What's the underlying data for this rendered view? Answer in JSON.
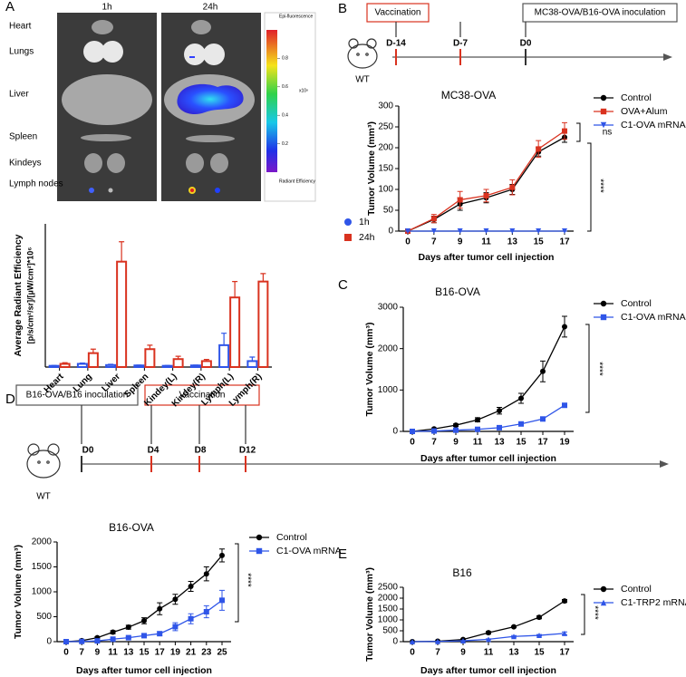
{
  "panel_labels": [
    "A",
    "B",
    "C",
    "D",
    "E"
  ],
  "imaging": {
    "timepoints": [
      "1h",
      "24h"
    ],
    "organs": [
      "Heart",
      "Lungs",
      "Liver",
      "Spleen",
      "Kindeys",
      "Lymph nodes"
    ],
    "colorbar_title": "Epi-fluorescence",
    "colorbar_unit": "x10⁸",
    "colorbar_ticks": [
      0.8,
      0.6,
      0.4,
      0.2
    ],
    "caption": "Radiant Efficiency"
  },
  "timelines": [
    {
      "boxes": [
        "Vaccination",
        "MC38-OVA/B16-OVA inoculation"
      ],
      "days": [
        "D-14",
        "D-7",
        "D0"
      ],
      "mouse": "WT"
    },
    {
      "boxes": [
        "B16-OVA/B16 inoculation",
        "Vaccination"
      ],
      "days": [
        "D0",
        "D4",
        "D8",
        "D12"
      ],
      "mouse": "WT"
    }
  ],
  "chart_data": [
    {
      "type": "bar",
      "y_label": [
        "Average Radiant Efficiency",
        "[p/s/cm²/sr]/[µW/cm²]*10⁶"
      ],
      "categories": [
        "Heart",
        "Lung",
        "Liver",
        "Spleen",
        "Kindey(L)",
        "Kindey(R)",
        "Lymph(L)",
        "Lymph(R)"
      ],
      "ylim": [
        0,
        36
      ],
      "series": [
        {
          "name": "1h",
          "color": "#2f55e8",
          "marker": "circle",
          "values": [
            0.3,
            0.8,
            0.5,
            0.4,
            0.3,
            0.4,
            5.5,
            1.5
          ],
          "errors": [
            0.1,
            0.2,
            0.2,
            0.1,
            0.1,
            0.1,
            3,
            1
          ]
        },
        {
          "name": "24h",
          "color": "#d9321f",
          "marker": "square",
          "values": [
            0.8,
            3.5,
            26.5,
            4.5,
            2,
            1.5,
            17.5,
            21.5
          ],
          "errors": [
            0.3,
            1,
            5,
            1,
            0.7,
            0.4,
            4,
            2
          ]
        }
      ]
    },
    {
      "type": "line",
      "title": "MC38-OVA",
      "y_label": "Tumor Volume (mm³)",
      "x_label": "Days after tumor cell injection",
      "categories": [
        "0",
        "7",
        "9",
        "11",
        "13",
        "15",
        "17"
      ],
      "ylim": [
        0,
        300
      ],
      "yticks": [
        0,
        50,
        100,
        150,
        200,
        250,
        300
      ],
      "series": [
        {
          "name": "Control",
          "color": "#000000",
          "marker": "circle",
          "values": [
            0,
            28,
            65,
            80,
            100,
            190,
            225
          ],
          "errors": [
            0,
            8,
            15,
            12,
            12,
            10,
            12
          ]
        },
        {
          "name": "OVA+Alum",
          "color": "#d9321f",
          "marker": "square",
          "values": [
            0,
            30,
            75,
            85,
            105,
            197,
            240
          ],
          "errors": [
            0,
            10,
            20,
            15,
            18,
            20,
            20
          ]
        },
        {
          "name": "C1-OVA mRNA",
          "color": "#2f55e8",
          "marker": "triangle-down",
          "values": [
            0,
            0,
            0,
            0,
            0,
            0,
            0
          ],
          "errors": [
            0,
            0,
            0,
            0,
            0,
            0,
            0
          ]
        }
      ],
      "annotations": [
        "ns",
        "****"
      ]
    },
    {
      "type": "line",
      "title": "B16-OVA",
      "y_label": "Tumor Volume (mm³)",
      "x_label": "Days after tumor cell injection",
      "categories": [
        "0",
        "7",
        "9",
        "11",
        "13",
        "15",
        "17",
        "19"
      ],
      "ylim": [
        0,
        3000
      ],
      "yticks": [
        0,
        1000,
        2000,
        3000
      ],
      "series": [
        {
          "name": "Control",
          "color": "#000000",
          "marker": "circle",
          "values": [
            0,
            60,
            150,
            280,
            500,
            800,
            1450,
            2530
          ],
          "errors": [
            0,
            20,
            30,
            50,
            80,
            120,
            250,
            250
          ]
        },
        {
          "name": "C1-OVA mRNA",
          "color": "#2f55e8",
          "marker": "square",
          "values": [
            0,
            10,
            30,
            50,
            90,
            180,
            300,
            630
          ],
          "errors": [
            0,
            5,
            10,
            10,
            15,
            20,
            30,
            50
          ]
        }
      ],
      "annotations": [
        "****"
      ]
    },
    {
      "type": "line",
      "title": "B16-OVA",
      "y_label": "Tumor Volume (mm³)",
      "x_label": "Days after tumor cell injection",
      "categories": [
        "0",
        "7",
        "9",
        "11",
        "13",
        "15",
        "17",
        "19",
        "21",
        "23",
        "25"
      ],
      "ylim": [
        0,
        2000
      ],
      "yticks": [
        0,
        500,
        1000,
        1500,
        2000
      ],
      "series": [
        {
          "name": "Control",
          "color": "#000000",
          "marker": "circle",
          "values": [
            0,
            20,
            80,
            190,
            290,
            420,
            660,
            850,
            1110,
            1360,
            1730
          ],
          "errors": [
            0,
            10,
            20,
            30,
            40,
            60,
            120,
            100,
            100,
            140,
            130
          ]
        },
        {
          "name": "C1-OVA mRNA",
          "color": "#2f55e8",
          "marker": "square",
          "values": [
            0,
            5,
            15,
            50,
            80,
            120,
            160,
            300,
            460,
            600,
            830
          ],
          "errors": [
            0,
            3,
            5,
            10,
            15,
            25,
            40,
            80,
            100,
            120,
            200
          ]
        }
      ],
      "annotations": [
        "****"
      ]
    },
    {
      "type": "line",
      "title": "B16",
      "y_label": "Tumor Volume (mm³)",
      "x_label": "Days after tumor cell injection",
      "categories": [
        "0",
        "7",
        "9",
        "11",
        "13",
        "15",
        "17"
      ],
      "ylim": [
        0,
        2500
      ],
      "yticks": [
        0,
        500,
        1000,
        1500,
        2000,
        2500
      ],
      "series": [
        {
          "name": "Control",
          "color": "#000000",
          "marker": "circle",
          "values": [
            0,
            20,
            100,
            410,
            680,
            1120,
            1870
          ],
          "errors": [
            0,
            5,
            20,
            60,
            30,
            70,
            70
          ]
        },
        {
          "name": "C1-TRP2 mRNA",
          "color": "#2f55e8",
          "marker": "triangle-up",
          "values": [
            0,
            10,
            40,
            110,
            240,
            290,
            380
          ],
          "errors": [
            0,
            5,
            10,
            20,
            40,
            40,
            70
          ]
        }
      ],
      "annotations": [
        "****"
      ]
    }
  ]
}
